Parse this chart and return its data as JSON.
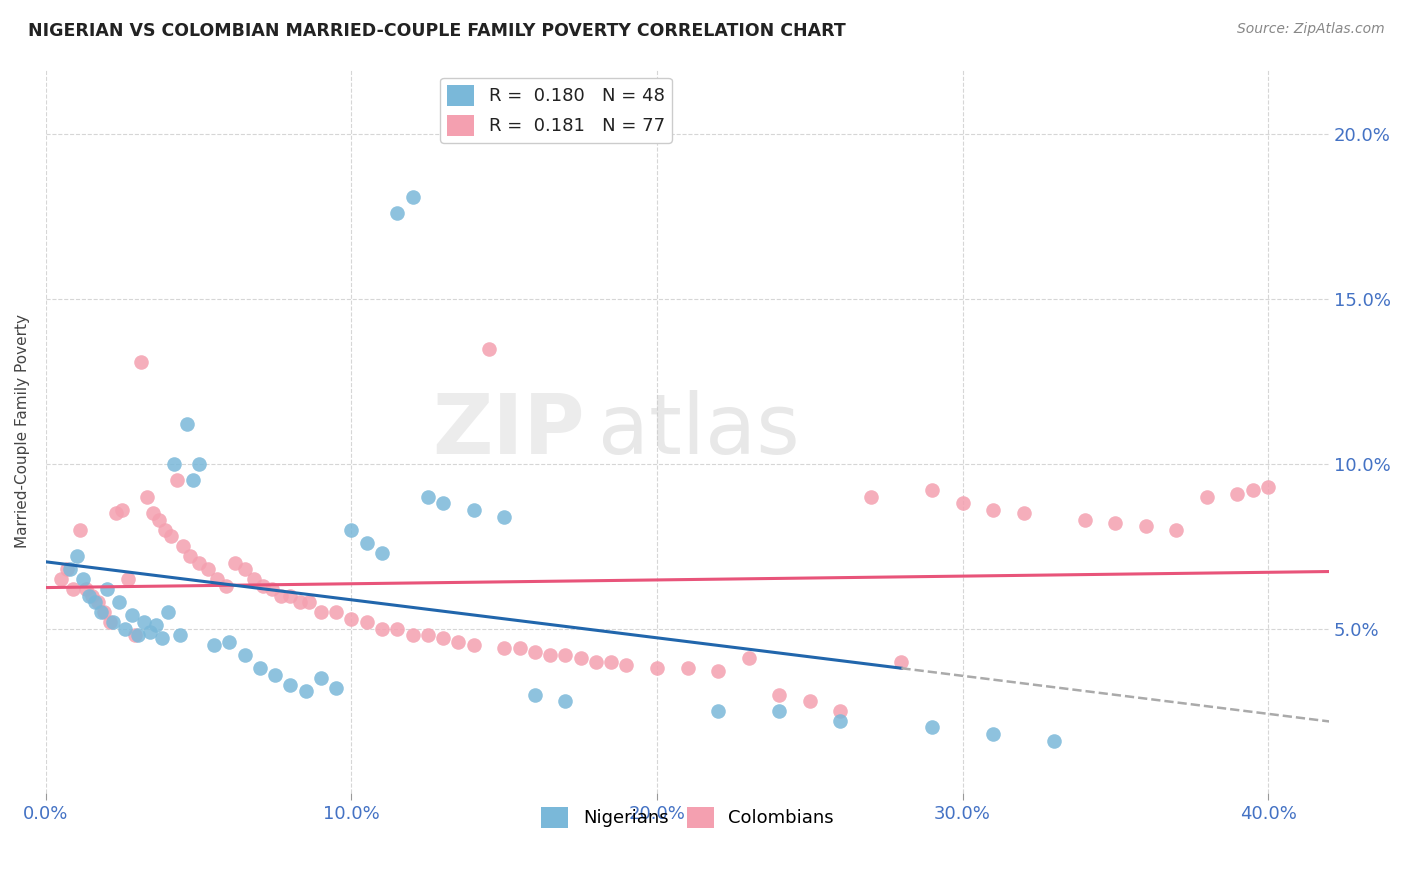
{
  "title": "NIGERIAN VS COLOMBIAN MARRIED-COUPLE FAMILY POVERTY CORRELATION CHART",
  "source": "Source: ZipAtlas.com",
  "ylabel": "Married-Couple Family Poverty",
  "xlabel_ticks": [
    "0.0%",
    "10.0%",
    "20.0%",
    "30.0%",
    "40.0%"
  ],
  "ylabel_ticks": [
    "5.0%",
    "10.0%",
    "15.0%",
    "20.0%"
  ],
  "xlim": [
    0.0,
    0.42
  ],
  "ylim": [
    0.0,
    0.22
  ],
  "nigerian_color": "#7ab8d9",
  "colombian_color": "#f4a0b0",
  "nigerian_line_color": "#2166ac",
  "colombian_line_color": "#e8547a",
  "nigerian_R": "0.180",
  "nigerian_N": "48",
  "colombian_R": "0.181",
  "colombian_N": "77",
  "watermark_zip": "ZIP",
  "watermark_atlas": "atlas",
  "nigerians_x": [
    0.008,
    0.01,
    0.012,
    0.014,
    0.016,
    0.018,
    0.02,
    0.022,
    0.024,
    0.026,
    0.028,
    0.03,
    0.032,
    0.034,
    0.036,
    0.038,
    0.04,
    0.042,
    0.044,
    0.046,
    0.048,
    0.05,
    0.055,
    0.06,
    0.065,
    0.07,
    0.075,
    0.08,
    0.085,
    0.09,
    0.095,
    0.1,
    0.105,
    0.11,
    0.115,
    0.12,
    0.125,
    0.13,
    0.14,
    0.15,
    0.16,
    0.17,
    0.22,
    0.24,
    0.26,
    0.29,
    0.31,
    0.33
  ],
  "nigerians_y": [
    0.068,
    0.072,
    0.065,
    0.06,
    0.058,
    0.055,
    0.062,
    0.052,
    0.058,
    0.05,
    0.054,
    0.048,
    0.052,
    0.049,
    0.051,
    0.047,
    0.055,
    0.1,
    0.048,
    0.112,
    0.095,
    0.1,
    0.045,
    0.046,
    0.042,
    0.038,
    0.036,
    0.033,
    0.031,
    0.035,
    0.032,
    0.08,
    0.076,
    0.073,
    0.176,
    0.181,
    0.09,
    0.088,
    0.086,
    0.084,
    0.03,
    0.028,
    0.025,
    0.025,
    0.022,
    0.02,
    0.018,
    0.016
  ],
  "colombians_x": [
    0.005,
    0.007,
    0.009,
    0.011,
    0.013,
    0.015,
    0.017,
    0.019,
    0.021,
    0.023,
    0.025,
    0.027,
    0.029,
    0.031,
    0.033,
    0.035,
    0.037,
    0.039,
    0.041,
    0.043,
    0.045,
    0.047,
    0.05,
    0.053,
    0.056,
    0.059,
    0.062,
    0.065,
    0.068,
    0.071,
    0.074,
    0.077,
    0.08,
    0.083,
    0.086,
    0.09,
    0.095,
    0.1,
    0.105,
    0.11,
    0.115,
    0.12,
    0.125,
    0.13,
    0.135,
    0.14,
    0.145,
    0.15,
    0.155,
    0.16,
    0.165,
    0.17,
    0.175,
    0.18,
    0.185,
    0.19,
    0.2,
    0.21,
    0.22,
    0.23,
    0.24,
    0.25,
    0.26,
    0.27,
    0.28,
    0.29,
    0.3,
    0.31,
    0.32,
    0.34,
    0.35,
    0.36,
    0.37,
    0.38,
    0.39,
    0.395,
    0.4
  ],
  "colombians_y": [
    0.065,
    0.068,
    0.062,
    0.08,
    0.062,
    0.06,
    0.058,
    0.055,
    0.052,
    0.085,
    0.086,
    0.065,
    0.048,
    0.131,
    0.09,
    0.085,
    0.083,
    0.08,
    0.078,
    0.095,
    0.075,
    0.072,
    0.07,
    0.068,
    0.065,
    0.063,
    0.07,
    0.068,
    0.065,
    0.063,
    0.062,
    0.06,
    0.06,
    0.058,
    0.058,
    0.055,
    0.055,
    0.053,
    0.052,
    0.05,
    0.05,
    0.048,
    0.048,
    0.047,
    0.046,
    0.045,
    0.135,
    0.044,
    0.044,
    0.043,
    0.042,
    0.042,
    0.041,
    0.04,
    0.04,
    0.039,
    0.038,
    0.038,
    0.037,
    0.041,
    0.03,
    0.028,
    0.025,
    0.09,
    0.04,
    0.092,
    0.088,
    0.086,
    0.085,
    0.083,
    0.082,
    0.081,
    0.08,
    0.09,
    0.091,
    0.092,
    0.093
  ]
}
